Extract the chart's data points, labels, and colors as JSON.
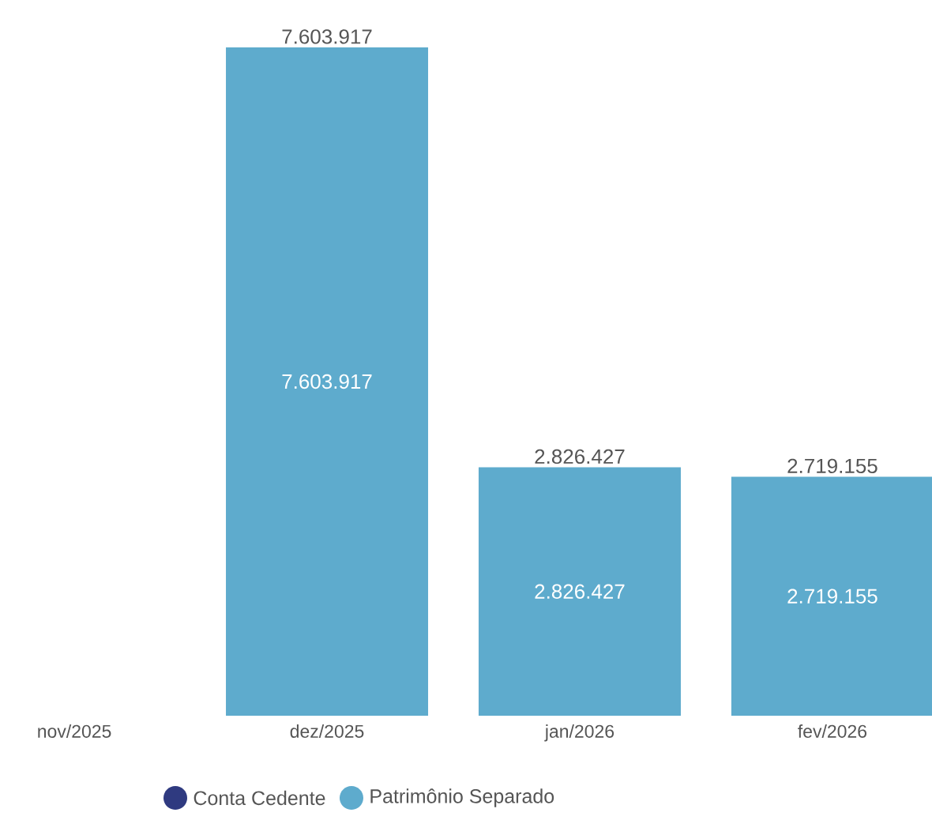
{
  "chart_data": {
    "type": "bar",
    "stacked": true,
    "categories": [
      "nov/2025",
      "dez/2025",
      "jan/2026",
      "fev/2026"
    ],
    "series": [
      {
        "name": "Conta Cedente",
        "color": "#2f3a80",
        "values": [
          null,
          null,
          null,
          null
        ]
      },
      {
        "name": "Patrimônio Separado",
        "color": "#5eabcd",
        "values": [
          null,
          7603917,
          2826427,
          2719155
        ],
        "value_labels": [
          null,
          "7.603.917",
          "2.826.427",
          "2.719.155"
        ]
      }
    ],
    "totals": [
      null,
      "7.603.917",
      "2.826.427",
      "2.719.155"
    ],
    "legend": "bottom"
  }
}
